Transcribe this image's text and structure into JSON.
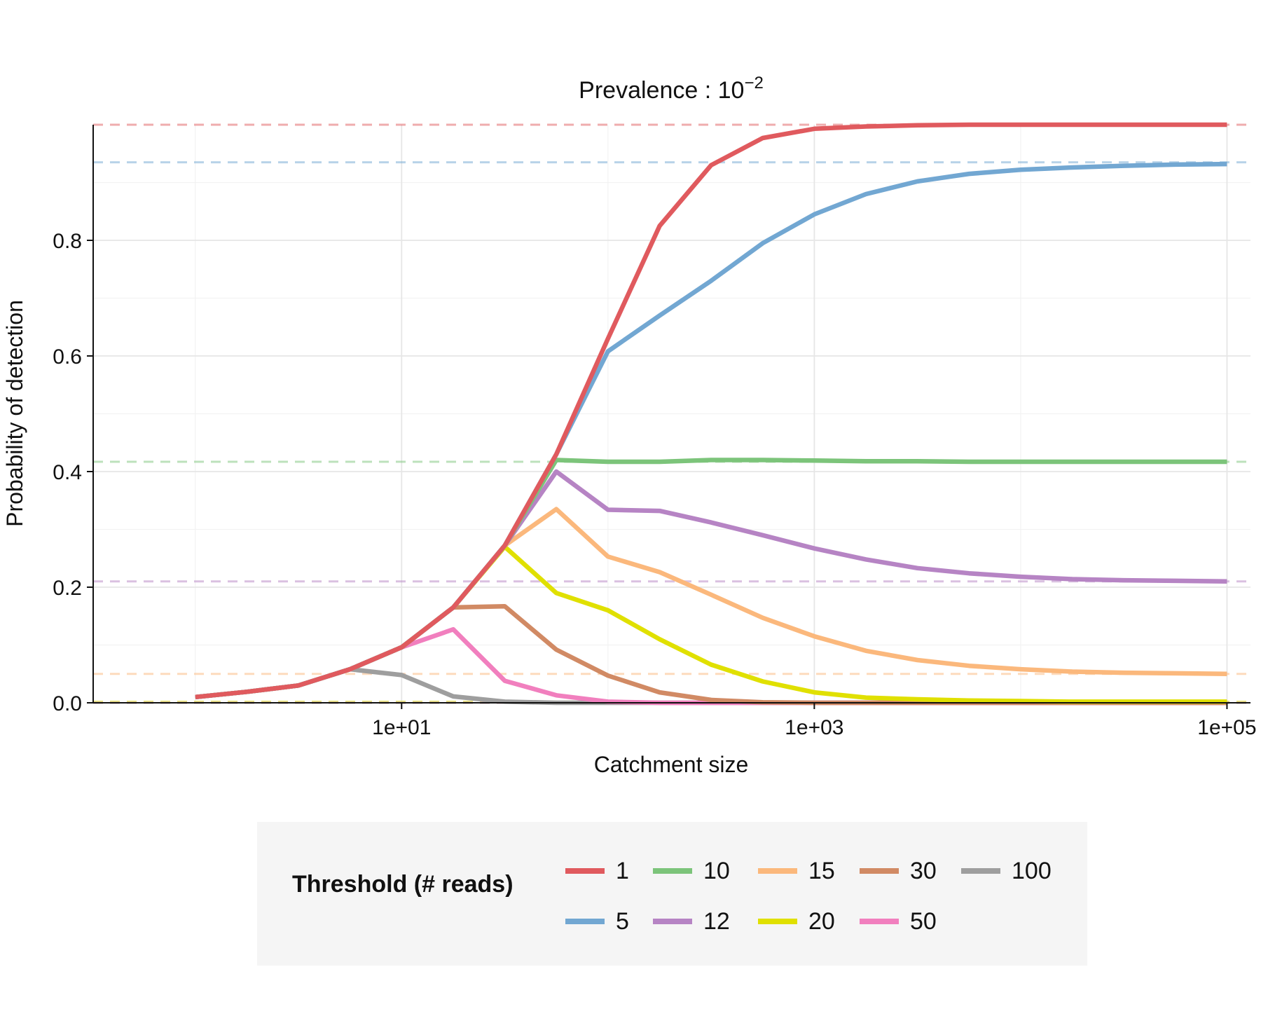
{
  "chart_data": {
    "type": "line",
    "title_base": "Prevalence : 10",
    "title_exp": "−2",
    "xlabel": "Catchment size",
    "ylabel": "Probability of detection",
    "x_scale": "log10",
    "x_ticks": [
      10,
      1000,
      100000
    ],
    "x_tick_labels": [
      "1e+01",
      "1e+03",
      "1e+05"
    ],
    "xlim": [
      0.32,
      130000
    ],
    "y_ticks": [
      0.0,
      0.2,
      0.4,
      0.6,
      0.8
    ],
    "y_tick_labels": [
      "0.0",
      "0.2",
      "0.4",
      "0.6",
      "0.8"
    ],
    "ylim": [
      0,
      1.0
    ],
    "grid": true,
    "x": [
      1,
      1.78,
      3.16,
      5.62,
      10,
      17.8,
      31.6,
      56.2,
      100,
      178,
      316,
      562,
      1000,
      1780,
      3160,
      5620,
      10000,
      17800,
      31600,
      56200,
      100000
    ],
    "series": [
      {
        "name": "1",
        "color": "#e05a5e",
        "asymptote": 1.0,
        "values": [
          0.01,
          0.019,
          0.03,
          0.058,
          0.096,
          0.165,
          0.272,
          0.43,
          0.63,
          0.825,
          0.93,
          0.977,
          0.993,
          0.997,
          0.999,
          1.0,
          1.0,
          1.0,
          1.0,
          1.0,
          1.0
        ]
      },
      {
        "name": "5",
        "color": "#72a7d2",
        "asymptote": 0.935,
        "values": [
          0.01,
          0.019,
          0.03,
          0.058,
          0.096,
          0.165,
          0.272,
          0.43,
          0.608,
          0.67,
          0.73,
          0.795,
          0.845,
          0.88,
          0.902,
          0.915,
          0.922,
          0.926,
          0.929,
          0.931,
          0.932
        ]
      },
      {
        "name": "10",
        "color": "#7cc47a",
        "asymptote": 0.417,
        "values": [
          0.01,
          0.019,
          0.03,
          0.058,
          0.096,
          0.165,
          0.272,
          0.42,
          0.417,
          0.417,
          0.42,
          0.42,
          0.419,
          0.418,
          0.418,
          0.417,
          0.417,
          0.417,
          0.417,
          0.417,
          0.417
        ]
      },
      {
        "name": "12",
        "color": "#b684c4",
        "asymptote": 0.21,
        "values": [
          0.01,
          0.019,
          0.03,
          0.058,
          0.096,
          0.165,
          0.272,
          0.4,
          0.334,
          0.332,
          0.312,
          0.29,
          0.267,
          0.248,
          0.233,
          0.224,
          0.218,
          0.214,
          0.212,
          0.211,
          0.21
        ]
      },
      {
        "name": "15",
        "color": "#fbb87c",
        "asymptote": 0.05,
        "values": [
          0.01,
          0.019,
          0.03,
          0.058,
          0.096,
          0.165,
          0.272,
          0.335,
          0.253,
          0.226,
          0.187,
          0.147,
          0.115,
          0.09,
          0.074,
          0.064,
          0.058,
          0.054,
          0.052,
          0.051,
          0.05
        ]
      },
      {
        "name": "20",
        "color": "#e0e000",
        "asymptote": 0.002,
        "values": [
          0.01,
          0.019,
          0.03,
          0.058,
          0.096,
          0.165,
          0.27,
          0.19,
          0.16,
          0.11,
          0.066,
          0.037,
          0.018,
          0.009,
          0.006,
          0.004,
          0.003,
          0.002,
          0.002,
          0.002,
          0.002
        ]
      },
      {
        "name": "30",
        "color": "#d18a64",
        "asymptote": 0.0,
        "values": [
          0.01,
          0.019,
          0.03,
          0.058,
          0.096,
          0.165,
          0.167,
          0.092,
          0.047,
          0.018,
          0.005,
          0.001,
          0.0,
          0.0,
          0.0,
          0.0,
          0.0,
          0.0,
          0.0,
          0.0,
          0.0
        ]
      },
      {
        "name": "50",
        "color": "#f17fbe",
        "asymptote": 0.0,
        "values": [
          0.01,
          0.019,
          0.03,
          0.058,
          0.096,
          0.127,
          0.038,
          0.013,
          0.002,
          0.0,
          0.0,
          0.0,
          0.0,
          0.0,
          0.0,
          0.0,
          0.0,
          0.0,
          0.0,
          0.0,
          0.0
        ]
      },
      {
        "name": "100",
        "color": "#9e9e9e",
        "asymptote": 0.0,
        "values": [
          0.01,
          0.019,
          0.03,
          0.058,
          0.048,
          0.011,
          0.002,
          0.0,
          0.0,
          0.0,
          0.0,
          0.0,
          0.0,
          0.0,
          0.0,
          0.0,
          0.0,
          0.0,
          0.0,
          0.0,
          0.0
        ]
      }
    ],
    "legend": {
      "title": "Threshold (# reads)",
      "placement": "bottom",
      "rows": [
        [
          "1",
          "10",
          "15",
          "30",
          "100"
        ],
        [
          "5",
          "12",
          "20",
          "50"
        ]
      ]
    }
  }
}
